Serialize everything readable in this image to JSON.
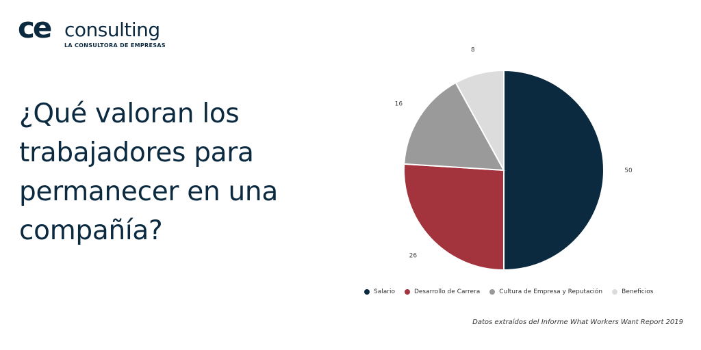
{
  "brand": {
    "mark": "ce",
    "name": "consulting",
    "tagline": "LA CONSULTORA DE EMPRESAS",
    "color": "#0b2a40"
  },
  "headline": {
    "lines": [
      "¿Qué valoran los",
      "trabajadores para",
      "permanecer en una",
      "compañía?"
    ]
  },
  "chart_data": {
    "type": "pie",
    "title": "",
    "categories": [
      "Salario",
      "Desarrollo de Carrera",
      "Cultura de Empresa y Reputación",
      "Beneficios"
    ],
    "values": [
      50,
      26,
      16,
      8
    ],
    "data_labels": [
      "50",
      "26",
      "16",
      "8"
    ],
    "colors": [
      "#0b2a40",
      "#a3343d",
      "#9a9a9a",
      "#dcdcdc"
    ],
    "legend_position": "bottom"
  },
  "source": "Datos extraídos del Informe What Workers Want Report 2019"
}
